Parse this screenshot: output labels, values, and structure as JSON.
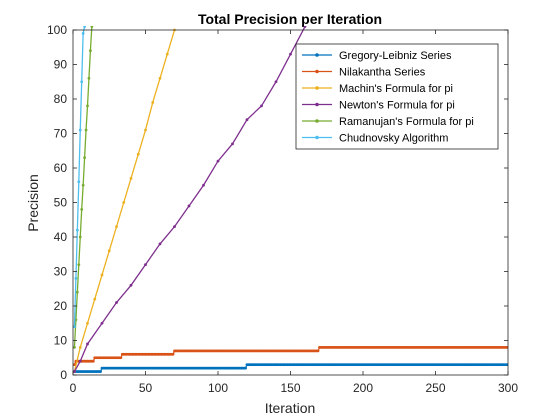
{
  "chart_data": {
    "type": "line",
    "title": "Total Precision per Iteration",
    "xlabel": "Iteration",
    "ylabel": "Precision",
    "xlim": [
      0,
      300
    ],
    "ylim": [
      0,
      100
    ],
    "xticks": [
      0,
      50,
      100,
      150,
      200,
      250,
      300
    ],
    "yticks": [
      0,
      10,
      20,
      30,
      40,
      50,
      60,
      70,
      80,
      90,
      100
    ],
    "grid": false,
    "legend_position": "top-right",
    "series": [
      {
        "name": "Gregory-Leibniz Series",
        "color": "#0072BD",
        "steps": [
          [
            1,
            1
          ],
          [
            20,
            2
          ],
          [
            120,
            3
          ]
        ],
        "x_end": 300,
        "points": []
      },
      {
        "name": "Nilakantha Series",
        "color": "#D95319",
        "steps": [
          [
            1,
            3
          ],
          [
            2,
            4
          ],
          [
            15,
            5
          ],
          [
            34,
            6
          ],
          [
            70,
            7
          ],
          [
            170,
            8
          ]
        ],
        "x_end": 300,
        "points": []
      },
      {
        "name": "Machin's Formula for pi",
        "color": "#EDB120",
        "steps": [],
        "x_end": null,
        "points": [
          [
            1,
            1
          ],
          [
            5,
            8
          ],
          [
            10,
            15
          ],
          [
            15,
            22
          ],
          [
            20,
            29
          ],
          [
            25,
            36
          ],
          [
            30,
            43
          ],
          [
            35,
            50
          ],
          [
            40,
            57
          ],
          [
            45,
            64
          ],
          [
            50,
            71
          ],
          [
            55,
            79
          ],
          [
            60,
            86
          ],
          [
            65,
            93
          ],
          [
            70,
            100
          ]
        ]
      },
      {
        "name": "Newton's Formula for pi",
        "color": "#7E2F8E",
        "steps": [],
        "x_end": null,
        "points": [
          [
            1,
            1
          ],
          [
            5,
            4
          ],
          [
            10,
            9
          ],
          [
            20,
            15
          ],
          [
            30,
            21
          ],
          [
            40,
            26
          ],
          [
            50,
            32
          ],
          [
            60,
            38
          ],
          [
            70,
            43
          ],
          [
            80,
            49
          ],
          [
            90,
            55
          ],
          [
            100,
            62
          ],
          [
            110,
            67
          ],
          [
            120,
            74
          ],
          [
            130,
            78
          ],
          [
            140,
            85
          ],
          [
            150,
            93
          ],
          [
            160,
            101
          ]
        ]
      },
      {
        "name": "Ramanujan's Formula for pi",
        "color": "#77AC30",
        "steps": [],
        "x_end": null,
        "points": [
          [
            1,
            8
          ],
          [
            2,
            16
          ],
          [
            3,
            24
          ],
          [
            4,
            32
          ],
          [
            5,
            40
          ],
          [
            6,
            48
          ],
          [
            7,
            55
          ],
          [
            8,
            63
          ],
          [
            9,
            71
          ],
          [
            10,
            78
          ],
          [
            11,
            86
          ],
          [
            12,
            94
          ],
          [
            13,
            101
          ]
        ]
      },
      {
        "name": "Chudnovsky Algorithm",
        "color": "#4DBEEE",
        "steps": [],
        "x_end": null,
        "points": [
          [
            1,
            14
          ],
          [
            2,
            28
          ],
          [
            3,
            42
          ],
          [
            4,
            56
          ],
          [
            5,
            71
          ],
          [
            6,
            85
          ],
          [
            7,
            99
          ],
          [
            8,
            101
          ]
        ]
      }
    ]
  }
}
